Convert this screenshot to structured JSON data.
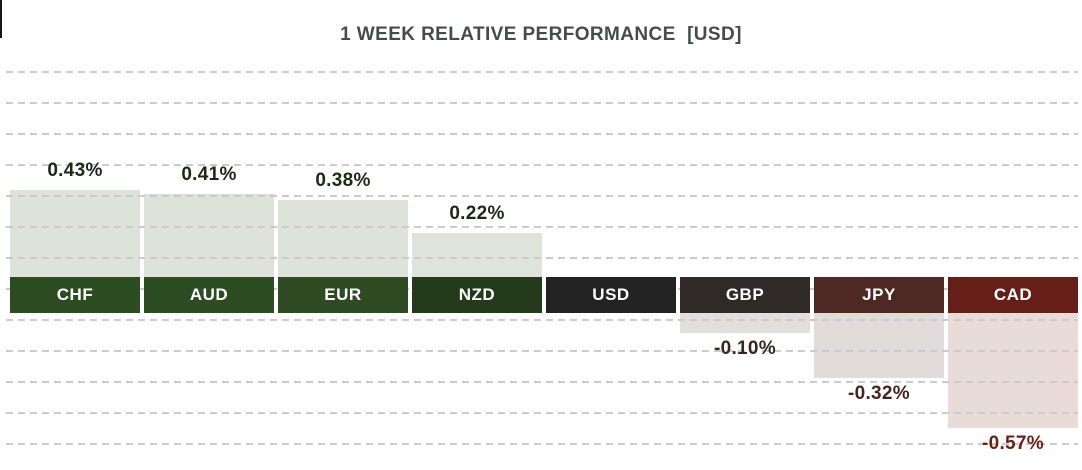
{
  "page": {
    "background": "#ffffff"
  },
  "chart_data": {
    "type": "bar",
    "title": "1 WEEK RELATIVE PERFORMANCE  [USD]",
    "subtitle": "",
    "unit": "percent",
    "categories": [
      "CHF",
      "AUD",
      "EUR",
      "NZD",
      "USD",
      "GBP",
      "JPY",
      "CAD"
    ],
    "values": [
      0.43,
      0.41,
      0.38,
      0.22,
      0,
      -0.1,
      -0.32,
      -0.57
    ],
    "value_labels": [
      "0.43%",
      "0.41%",
      "0.38%",
      "0.22%",
      "",
      "-0.10%",
      "-0.32%",
      "-0.57%"
    ],
    "baseline_note": "USD is the 0% baseline and has no bar",
    "xlabel": "",
    "ylabel": "",
    "ylim_approx": [
      -0.64,
      1.02
    ],
    "grid": {
      "orientation": "horizontal",
      "style": "dashed",
      "color": "#cbcbcb"
    },
    "legend": "none",
    "colors": {
      "title_text": "#454d4a",
      "category_text": "#ffffff",
      "category_bg": [
        "#2c4d22",
        "#2c4d22",
        "#2e4b23",
        "#233a1b",
        "#232323",
        "#2f2a27",
        "#4e2823",
        "#661f18"
      ],
      "bar_fill": [
        "#dde3d8",
        "#dde3d8",
        "#dde3d8",
        "#dee4da",
        "",
        "#e1dedb",
        "#e1dcda",
        "#e9dbd8"
      ],
      "value_text": [
        "#1c2a15",
        "#1c2a15",
        "#1c2a15",
        "#1c2a15",
        "",
        "#33291f",
        "#46241d",
        "#6b1f15"
      ]
    }
  }
}
